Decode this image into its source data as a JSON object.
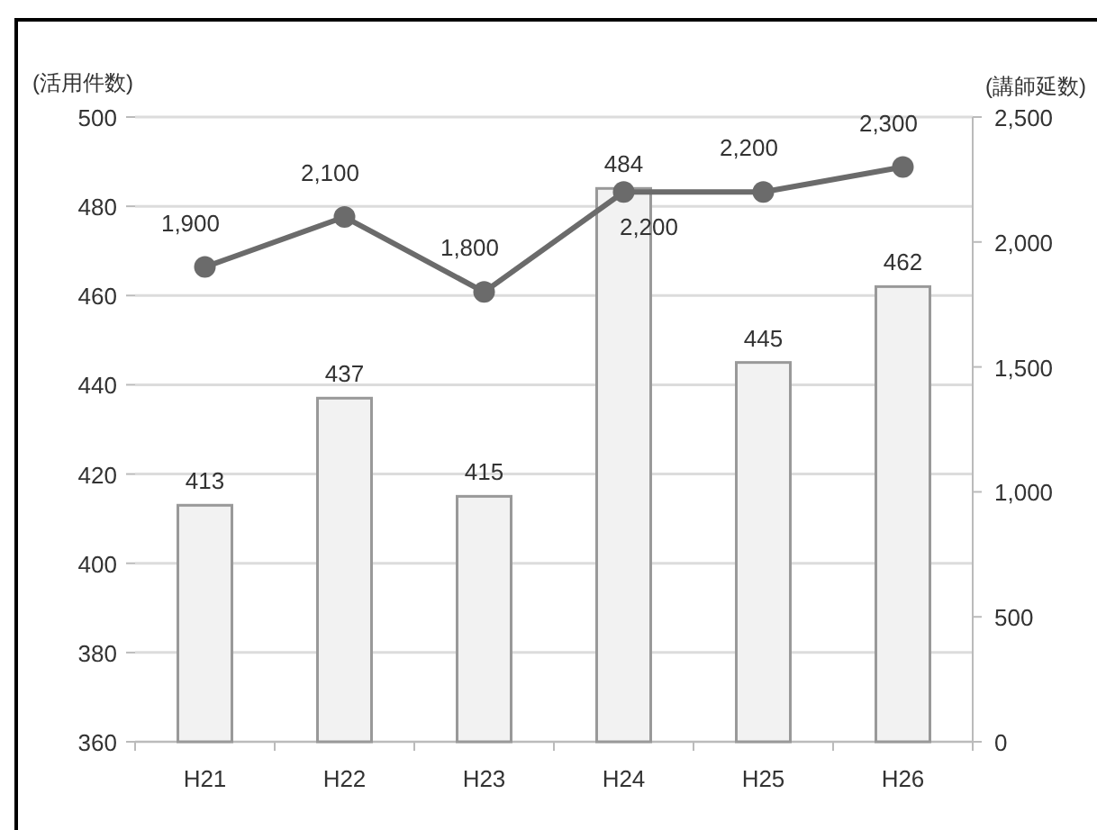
{
  "chart_data": {
    "type": "bar",
    "ylabel": "(活用件数)",
    "y2label": "(講師延数)",
    "categories": [
      "H21",
      "H22",
      "H23",
      "H24",
      "H25",
      "H26"
    ],
    "series": [
      {
        "color": "#f2f2f2",
        "values": [
          413,
          437,
          415,
          484,
          445,
          462
        ]
      },
      {
        "type": "line",
        "axis": "y2",
        "color": "#6b6b6b",
        "marker": "circle",
        "values": [
          1900,
          2100,
          1800,
          2200,
          2200,
          2300
        ],
        "value_labels": [
          "1,900",
          "2,100",
          "1,800",
          "2,200",
          "2,200",
          "2,300"
        ]
      }
    ],
    "ylim": [
      360,
      500
    ],
    "yticks": [
      360,
      380,
      400,
      420,
      440,
      460,
      480,
      500
    ],
    "y2lim": [
      0,
      2500
    ],
    "y2ticks": [
      0,
      500,
      {
        "value": 1000,
        "label": "1,000"
      },
      {
        "value": 1500,
        "label": "1,500"
      },
      {
        "value": 2000,
        "label": "2,000"
      },
      {
        "value": 2500,
        "label": "2,500"
      }
    ],
    "grid": "y",
    "data_labels": true
  }
}
